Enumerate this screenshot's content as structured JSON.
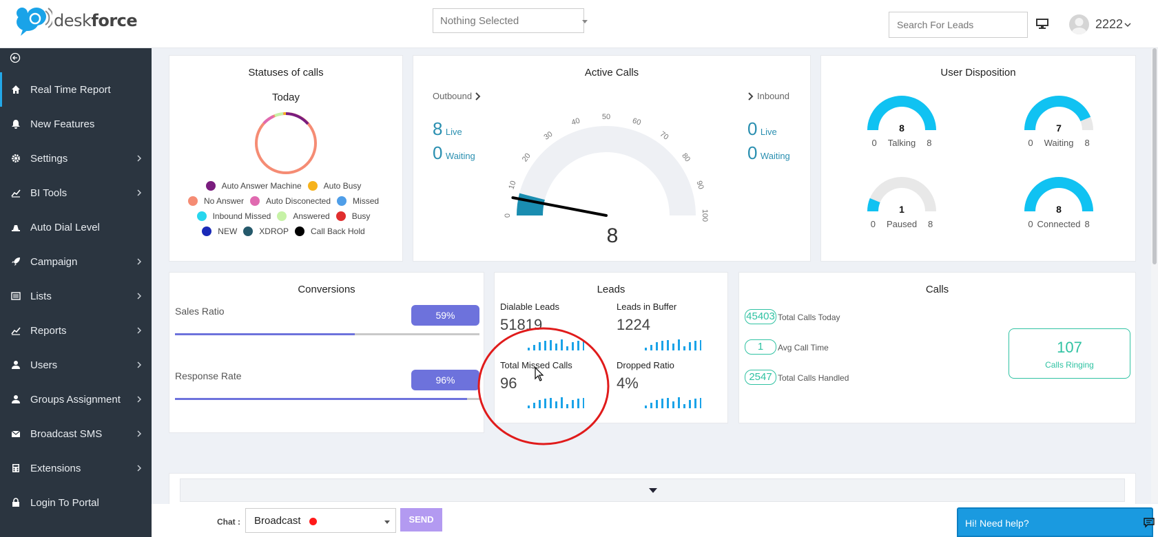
{
  "header": {
    "logo_text_light": "desk",
    "logo_text_bold": "force",
    "campaign_select": "Nothing Selected",
    "search_placeholder": "Search For Leads",
    "user_name": "2222"
  },
  "sidebar": {
    "items": [
      {
        "label": "Real Time Report",
        "icon": "home-icon",
        "chevron": false
      },
      {
        "label": "New Features",
        "icon": "bell-icon",
        "chevron": false
      },
      {
        "label": "Settings",
        "icon": "gear-icon",
        "chevron": true
      },
      {
        "label": "BI Tools",
        "icon": "line-chart-icon",
        "chevron": true
      },
      {
        "label": "Auto Dial Level",
        "icon": "stack-icon",
        "chevron": false
      },
      {
        "label": "Campaign",
        "icon": "rocket-icon",
        "chevron": true
      },
      {
        "label": "Lists",
        "icon": "list-icon",
        "chevron": true
      },
      {
        "label": "Reports",
        "icon": "line-chart-icon",
        "chevron": true
      },
      {
        "label": "Users",
        "icon": "user-icon",
        "chevron": true
      },
      {
        "label": "Groups Assignment",
        "icon": "user-icon",
        "chevron": true
      },
      {
        "label": "Broadcast SMS",
        "icon": "envelope-icon",
        "chevron": true
      },
      {
        "label": "Extensions",
        "icon": "calculator-icon",
        "chevron": true
      },
      {
        "label": "Login To Portal",
        "icon": "lock-icon",
        "chevron": false
      }
    ]
  },
  "statuses": {
    "title": "Statuses of calls",
    "subtitle": "Today",
    "legend": [
      [
        {
          "label": "Auto Answer Machine",
          "color": "#7a1d7e"
        },
        {
          "label": "Auto Busy",
          "color": "#f6b21b"
        }
      ],
      [
        {
          "label": "No Answer",
          "color": "#f58c74"
        },
        {
          "label": "Auto Disconected",
          "color": "#e06ab0"
        },
        {
          "label": "Missed",
          "color": "#4f9ee8"
        }
      ],
      [
        {
          "label": "Inbound Missed",
          "color": "#27d6ee"
        },
        {
          "label": "Answered",
          "color": "#c6f2a6"
        },
        {
          "label": "Busy",
          "color": "#e02e2e"
        }
      ],
      [
        {
          "label": "NEW",
          "color": "#1a2ab8"
        },
        {
          "label": "XDROP",
          "color": "#25596b"
        },
        {
          "label": "Call Back Hold",
          "color": "#000000"
        }
      ]
    ]
  },
  "active_calls": {
    "title": "Active Calls",
    "outbound_label": "Outbound",
    "inbound_label": "Inbound",
    "outbound_live": "8",
    "outbound_waiting": "0",
    "inbound_live": "0",
    "inbound_waiting": "0",
    "live_label": "Live",
    "waiting_label": "Waiting",
    "gauge_value": "8",
    "gauge_level": 8,
    "gauge_ticks": [
      "0",
      "10",
      "20",
      "30",
      "40",
      "50",
      "60",
      "70",
      "80",
      "90",
      "100"
    ]
  },
  "user_disposition": {
    "title": "User Disposition",
    "blocks": [
      {
        "value": "8",
        "min": "0",
        "label": "Talking",
        "max": "8",
        "fraction": 1.0
      },
      {
        "value": "7",
        "min": "0",
        "label": "Waiting",
        "max": "8",
        "fraction": 0.875
      },
      {
        "value": "1",
        "min": "0",
        "label": "Paused",
        "max": "8",
        "fraction": 0.125
      },
      {
        "value": "8",
        "min": "0",
        "label": "Connected",
        "max": "8",
        "fraction": 1.0
      }
    ]
  },
  "conversions": {
    "title": "Conversions",
    "sales_label": "Sales Ratio",
    "sales_value": "59%",
    "sales_fraction": 0.59,
    "response_label": "Response Rate",
    "response_value": "96%",
    "response_fraction": 0.96
  },
  "leads": {
    "title": "Leads",
    "dialable_label": "Dialable Leads",
    "dialable_value": "51819",
    "buffer_label": "Leads in Buffer",
    "buffer_value": "1224",
    "missed_label": "Total Missed Calls",
    "missed_value": "96",
    "dropped_label": "Dropped Ratio",
    "dropped_value": "4%"
  },
  "calls": {
    "title": "Calls",
    "total_today": "45403",
    "total_today_label": "Total Calls Today",
    "avg_time": "1",
    "avg_time_label": "Avg Call Time",
    "handled": "2547",
    "handled_label": "Total Calls Handled",
    "ringing": "107",
    "ringing_label": "Calls Ringing"
  },
  "chat": {
    "label": "Chat :",
    "select_value": "Broadcast",
    "send_label": "SEND",
    "help_label": "Hi! Need help?"
  },
  "colors": {
    "accent_cyan": "#10c2f2",
    "purple": "#6d72dc",
    "teal": "#2fc2a2",
    "sidebar": "#2b3540"
  }
}
